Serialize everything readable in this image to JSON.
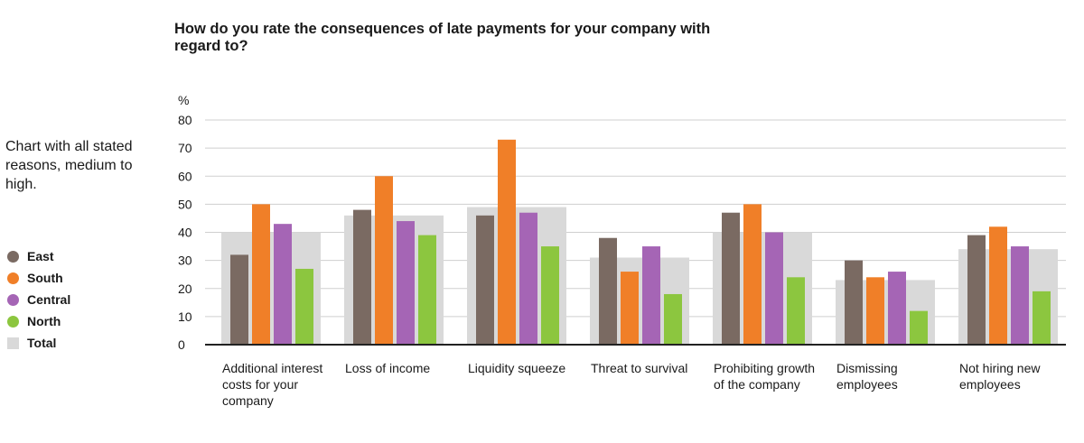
{
  "chart_data": {
    "type": "bar",
    "title": "How do you rate the consequences of late payments for your company with regard to?",
    "note": "Chart with all stated reasons, medium to high.",
    "yunit": "%",
    "ylim": [
      0,
      80
    ],
    "yticks": [
      0,
      10,
      20,
      30,
      40,
      50,
      60,
      70,
      80
    ],
    "grid": true,
    "legend_position": "left",
    "categories": [
      "Additional interest costs for your company",
      "Loss of income",
      "Liquidity squeeze",
      "Threat to survival",
      "Prohibiting growth of the company",
      "Dismissing employees",
      "Not hiring new employees"
    ],
    "total": {
      "name": "Total",
      "color": "#d9d9d9",
      "values": [
        40,
        46,
        49,
        31,
        40,
        23,
        34
      ]
    },
    "series": [
      {
        "name": "East",
        "color": "#7a6a62",
        "values": [
          32,
          48,
          46,
          38,
          47,
          30,
          39
        ]
      },
      {
        "name": "South",
        "color": "#f07f28",
        "values": [
          50,
          60,
          73,
          26,
          50,
          24,
          42
        ]
      },
      {
        "name": "Central",
        "color": "#a565b5",
        "values": [
          43,
          44,
          47,
          35,
          40,
          26,
          35
        ]
      },
      {
        "name": "North",
        "color": "#8cc63f",
        "values": [
          27,
          39,
          35,
          18,
          24,
          12,
          19
        ]
      }
    ]
  }
}
